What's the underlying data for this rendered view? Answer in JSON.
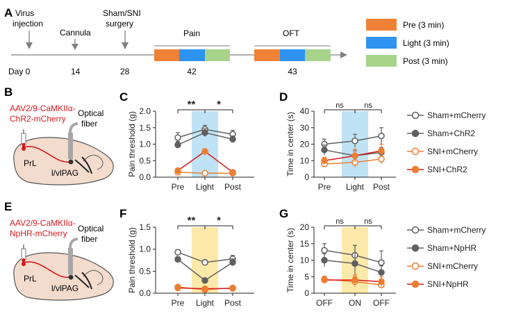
{
  "panel_letters": {
    "A": "A",
    "B": "B",
    "C": "C",
    "D": "D",
    "E": "E",
    "F": "F",
    "G": "G"
  },
  "timeline": {
    "events": [
      {
        "label": [
          "Virus",
          "injection"
        ],
        "day": "Day 0"
      },
      {
        "label": [
          "Cannula"
        ],
        "day": "14"
      },
      {
        "label": [
          "Sham/SNI",
          "surgery"
        ],
        "day": "28"
      }
    ],
    "session_pain": {
      "label": "Pain",
      "day": "42"
    },
    "session_oft": {
      "label": "OFT",
      "day": "43"
    }
  },
  "legend_A": [
    {
      "label": "Pre (3 min)",
      "color": "#f08237"
    },
    {
      "label": "Light (3 min)",
      "color": "#2f93f1"
    },
    {
      "label": "Post (3 min)",
      "color": "#a7d38a"
    }
  ],
  "virus_B": [
    "AAV2/9-CaMKIIα-",
    "ChR2-mCherry"
  ],
  "virus_E": [
    "AAV2/9-CaMKIIα-",
    "NpHR-mCherry"
  ],
  "brain_labels": {
    "fiber": [
      "Optical",
      "fiber"
    ],
    "prl": "PrL",
    "pag": "l/vlPAG"
  },
  "legend_top": [
    "Sham+mCherry",
    "Sham+ChR2",
    "SNI+mCherry",
    "SNI+ChR2"
  ],
  "legend_bottom": [
    "Sham+mCherry",
    "Sham+NpHR",
    "SNI+mCherry",
    "SNI+NpHR"
  ],
  "colors": {
    "gray": "#606060",
    "orange": "#ed7d31",
    "red": "#d7191c",
    "blue_band": "#bfe3f5",
    "yellow_band": "#fde9a9"
  },
  "chart_data": [
    {
      "id": "C",
      "type": "line",
      "ylabel": "Pain threshold (g)",
      "categories": [
        "Pre",
        "Light",
        "Post"
      ],
      "ylim": [
        0,
        2.0
      ],
      "yticks": [
        "0.0",
        "0.5",
        "1.0",
        "1.5",
        "2.0"
      ],
      "band": "blue",
      "sig": [
        "**",
        "*"
      ],
      "series": [
        {
          "name": "Sham+mCherry",
          "values": [
            1.2,
            1.45,
            1.3
          ],
          "err": [
            0.15,
            0.12,
            0.12
          ]
        },
        {
          "name": "Sham+ChR2",
          "values": [
            0.98,
            1.35,
            1.15
          ],
          "err": [
            0.1,
            0.12,
            0.1
          ]
        },
        {
          "name": "SNI+mCherry",
          "values": [
            0.15,
            0.12,
            0.12
          ],
          "err": [
            0.03,
            0.02,
            0.02
          ]
        },
        {
          "name": "SNI+ChR2",
          "values": [
            0.2,
            0.78,
            0.15
          ],
          "err": [
            0.05,
            0.08,
            0.03
          ]
        }
      ]
    },
    {
      "id": "D",
      "type": "line",
      "ylabel": "Time in center (s)",
      "categories": [
        "Pre",
        "Light",
        "Post"
      ],
      "ylim": [
        0,
        40
      ],
      "yticks": [
        "0",
        "10",
        "20",
        "30",
        "40"
      ],
      "band": "blue",
      "sig": [
        "ns",
        "ns"
      ],
      "series": [
        {
          "name": "Sham+mCherry",
          "values": [
            20,
            22,
            25
          ],
          "err": [
            3,
            4,
            5
          ]
        },
        {
          "name": "Sham+ChR2",
          "values": [
            16.5,
            13,
            15
          ],
          "err": [
            3,
            3,
            3
          ]
        },
        {
          "name": "SNI+mCherry",
          "values": [
            8,
            9,
            11
          ],
          "err": [
            2,
            3,
            3
          ]
        },
        {
          "name": "SNI+ChR2",
          "values": [
            10,
            13,
            16
          ],
          "err": [
            2,
            4,
            4
          ]
        }
      ]
    },
    {
      "id": "F",
      "type": "line",
      "ylabel": "Pain threshold (g)",
      "categories": [
        "Pre",
        "Light",
        "Post"
      ],
      "ylim": [
        0,
        1.5
      ],
      "yticks": [
        "0.0",
        "0.5",
        "1.0",
        "1.5"
      ],
      "band": "yellow",
      "sig": [
        "**",
        "*"
      ],
      "series": [
        {
          "name": "Sham+mCherry",
          "values": [
            0.93,
            0.7,
            0.78
          ],
          "err": [
            0.06,
            0.06,
            0.08
          ]
        },
        {
          "name": "Sham+NpHR",
          "values": [
            0.77,
            0.29,
            0.7
          ],
          "err": [
            0.06,
            0.03,
            0.08
          ]
        },
        {
          "name": "SNI+mCherry",
          "values": [
            0.14,
            0.08,
            0.12
          ],
          "err": [
            0.03,
            0.02,
            0.02
          ]
        },
        {
          "name": "SNI+NpHR",
          "values": [
            0.12,
            0.1,
            0.11
          ],
          "err": [
            0.03,
            0.02,
            0.02
          ]
        }
      ]
    },
    {
      "id": "G",
      "type": "line",
      "ylabel": "Time in center (s)",
      "categories": [
        "OFF",
        "ON",
        "OFF"
      ],
      "ylim": [
        0,
        20
      ],
      "yticks": [
        "0",
        "5",
        "10",
        "15",
        "20"
      ],
      "band": "yellow",
      "sig": [
        "ns",
        "ns"
      ],
      "series": [
        {
          "name": "Sham+mCherry",
          "values": [
            13,
            11.5,
            9.3
          ],
          "err": [
            2,
            3,
            3.5
          ]
        },
        {
          "name": "Sham+NpHR",
          "values": [
            10,
            9,
            6.3
          ],
          "err": [
            2,
            5.5,
            2
          ]
        },
        {
          "name": "SNI+mCherry",
          "values": [
            4.2,
            3.5,
            2.5
          ],
          "err": [
            1,
            1.5,
            1
          ]
        },
        {
          "name": "SNI+NpHR",
          "values": [
            4,
            4,
            3.5
          ],
          "err": [
            1,
            1.5,
            1.5
          ]
        }
      ]
    }
  ]
}
